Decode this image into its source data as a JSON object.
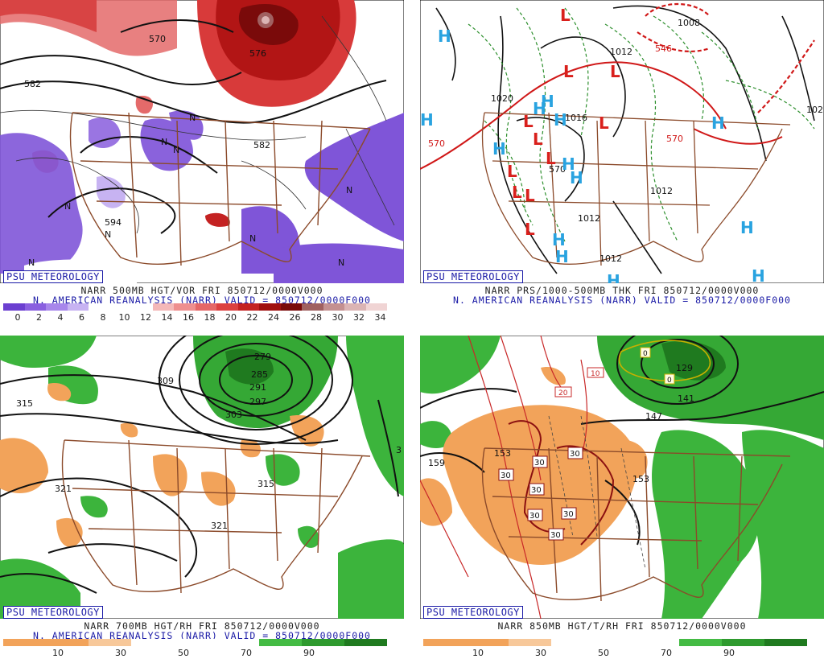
{
  "badge": "PSU METEOROLOGY",
  "panels": [
    {
      "title_line1": "NARR 500MB HGT/VOR FRI 850712/0000V000",
      "title_line2": "N. AMERICAN REANALYSIS (NARR) VALID = 850712/0000F000",
      "colorbar": {
        "ticks": [
          "0",
          "2",
          "4",
          "6",
          "8",
          "10",
          "12",
          "14",
          "16",
          "18",
          "20",
          "22",
          "24",
          "26",
          "28",
          "30",
          "32",
          "34"
        ],
        "colors": [
          "#6b3fd0",
          "#8a5fe0",
          "#a786eb",
          "#c7b3f2",
          "#ffffff",
          "#ffffff",
          "#ffffff",
          "#f4b8b8",
          "#ee8f8f",
          "#e56767",
          "#dc4040",
          "#c42222",
          "#a01010",
          "#7a0a0a",
          "#a06060",
          "#c49090",
          "#dbb4b4",
          "#f0d4d4"
        ]
      },
      "contour_labels": [
        "570",
        "582",
        "582",
        "594",
        "576"
      ],
      "markers": [
        "N",
        "N",
        "N",
        "N",
        "N",
        "N",
        "N",
        "N",
        "N"
      ]
    },
    {
      "title_line1": "NARR PRS/1000-500MB THK FRI 850712/0000V000",
      "title_line2": "N. AMERICAN REANALYSIS (NARR) VALID = 850712/0000F000",
      "contour_labels": [
        "1020",
        "1016",
        "1012",
        "1012",
        "1012",
        "1012",
        "570",
        "570",
        "570",
        "546",
        "1008",
        "102"
      ],
      "highs": [
        "H",
        "H",
        "H",
        "H",
        "H",
        "H",
        "H",
        "H",
        "H",
        "H",
        "H",
        "H",
        "H",
        "H"
      ],
      "lows": [
        "L",
        "L",
        "L",
        "L",
        "L",
        "L",
        "L",
        "L",
        "L",
        "L",
        "L"
      ]
    },
    {
      "title_line1": "NARR 700MB HGT/RH FRI 850712/0000V000",
      "title_line2": "N. AMERICAN REANALYSIS (NARR) VALID = 850712/0000F000",
      "colorbar": {
        "ticks": [
          "10",
          "30",
          "50",
          "70",
          "90"
        ],
        "colors": [
          "#f2a35a",
          "#f2a35a",
          "#f7c89a",
          "#ffffff",
          "#ffffff",
          "#ffffff",
          "#44bb44",
          "#2e9a2e",
          "#1f7a1f"
        ]
      },
      "contour_labels": [
        "315",
        "309",
        "303",
        "297",
        "291",
        "285",
        "279",
        "321",
        "321",
        "315",
        "3"
      ]
    },
    {
      "title_line1": "NARR 850MB HGT/T/RH FRI 850712/0000V000",
      "title_line2": "",
      "colorbar": {
        "ticks": [
          "10",
          "30",
          "50",
          "70",
          "90"
        ],
        "colors": [
          "#f2a35a",
          "#f2a35a",
          "#f7c89a",
          "#ffffff",
          "#ffffff",
          "#ffffff",
          "#44bb44",
          "#2e9a2e",
          "#1f7a1f"
        ]
      },
      "contour_labels": [
        "159",
        "153",
        "153",
        "147",
        "141",
        "129",
        "10",
        "20",
        "30",
        "30",
        "30",
        "30",
        "30",
        "30",
        "30",
        "0",
        "0"
      ]
    }
  ]
}
